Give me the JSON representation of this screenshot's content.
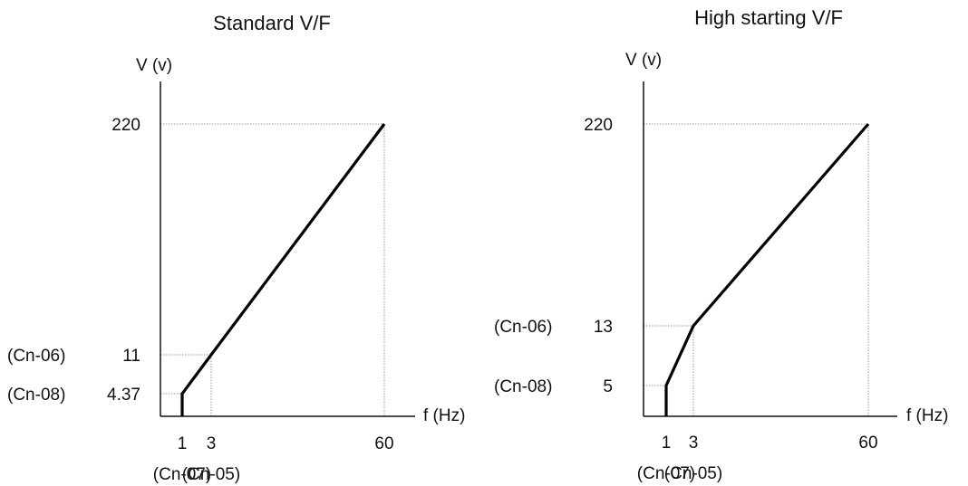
{
  "chart_data": [
    {
      "type": "line",
      "title": "Standard V/F",
      "ylabel": "V (v)",
      "xlabel": "f (Hz)",
      "points": [
        {
          "x": 1,
          "y": 0
        },
        {
          "x": 1,
          "y": 4.37
        },
        {
          "x": 3,
          "y": 11
        },
        {
          "x": 60,
          "y": 220
        }
      ],
      "y_ticks": [
        {
          "value": 220,
          "label": "220",
          "param": ""
        },
        {
          "value": 11,
          "label": "11",
          "param": "(Cn-06)"
        },
        {
          "value": 4.37,
          "label": "4.37",
          "param": "(Cn-08)"
        }
      ],
      "x_ticks": [
        {
          "value": 1,
          "label": "1",
          "param": "(Cn-07)"
        },
        {
          "value": 3,
          "label": "3",
          "param": "(Cn-05)"
        },
        {
          "value": 60,
          "label": "60",
          "param": ""
        }
      ]
    },
    {
      "type": "line",
      "title": "High starting V/F",
      "ylabel": "V (v)",
      "xlabel": "f (Hz)",
      "points": [
        {
          "x": 1,
          "y": 0
        },
        {
          "x": 1,
          "y": 5
        },
        {
          "x": 3,
          "y": 13
        },
        {
          "x": 60,
          "y": 220
        }
      ],
      "y_ticks": [
        {
          "value": 220,
          "label": "220",
          "param": ""
        },
        {
          "value": 13,
          "label": "13",
          "param": "(Cn-06)"
        },
        {
          "value": 5,
          "label": "5",
          "param": "(Cn-08)"
        }
      ],
      "x_ticks": [
        {
          "value": 1,
          "label": "1",
          "param": "(Cn-07)"
        },
        {
          "value": 3,
          "label": "3",
          "param": "(Cn-05)"
        },
        {
          "value": 60,
          "label": "60",
          "param": ""
        }
      ]
    }
  ]
}
